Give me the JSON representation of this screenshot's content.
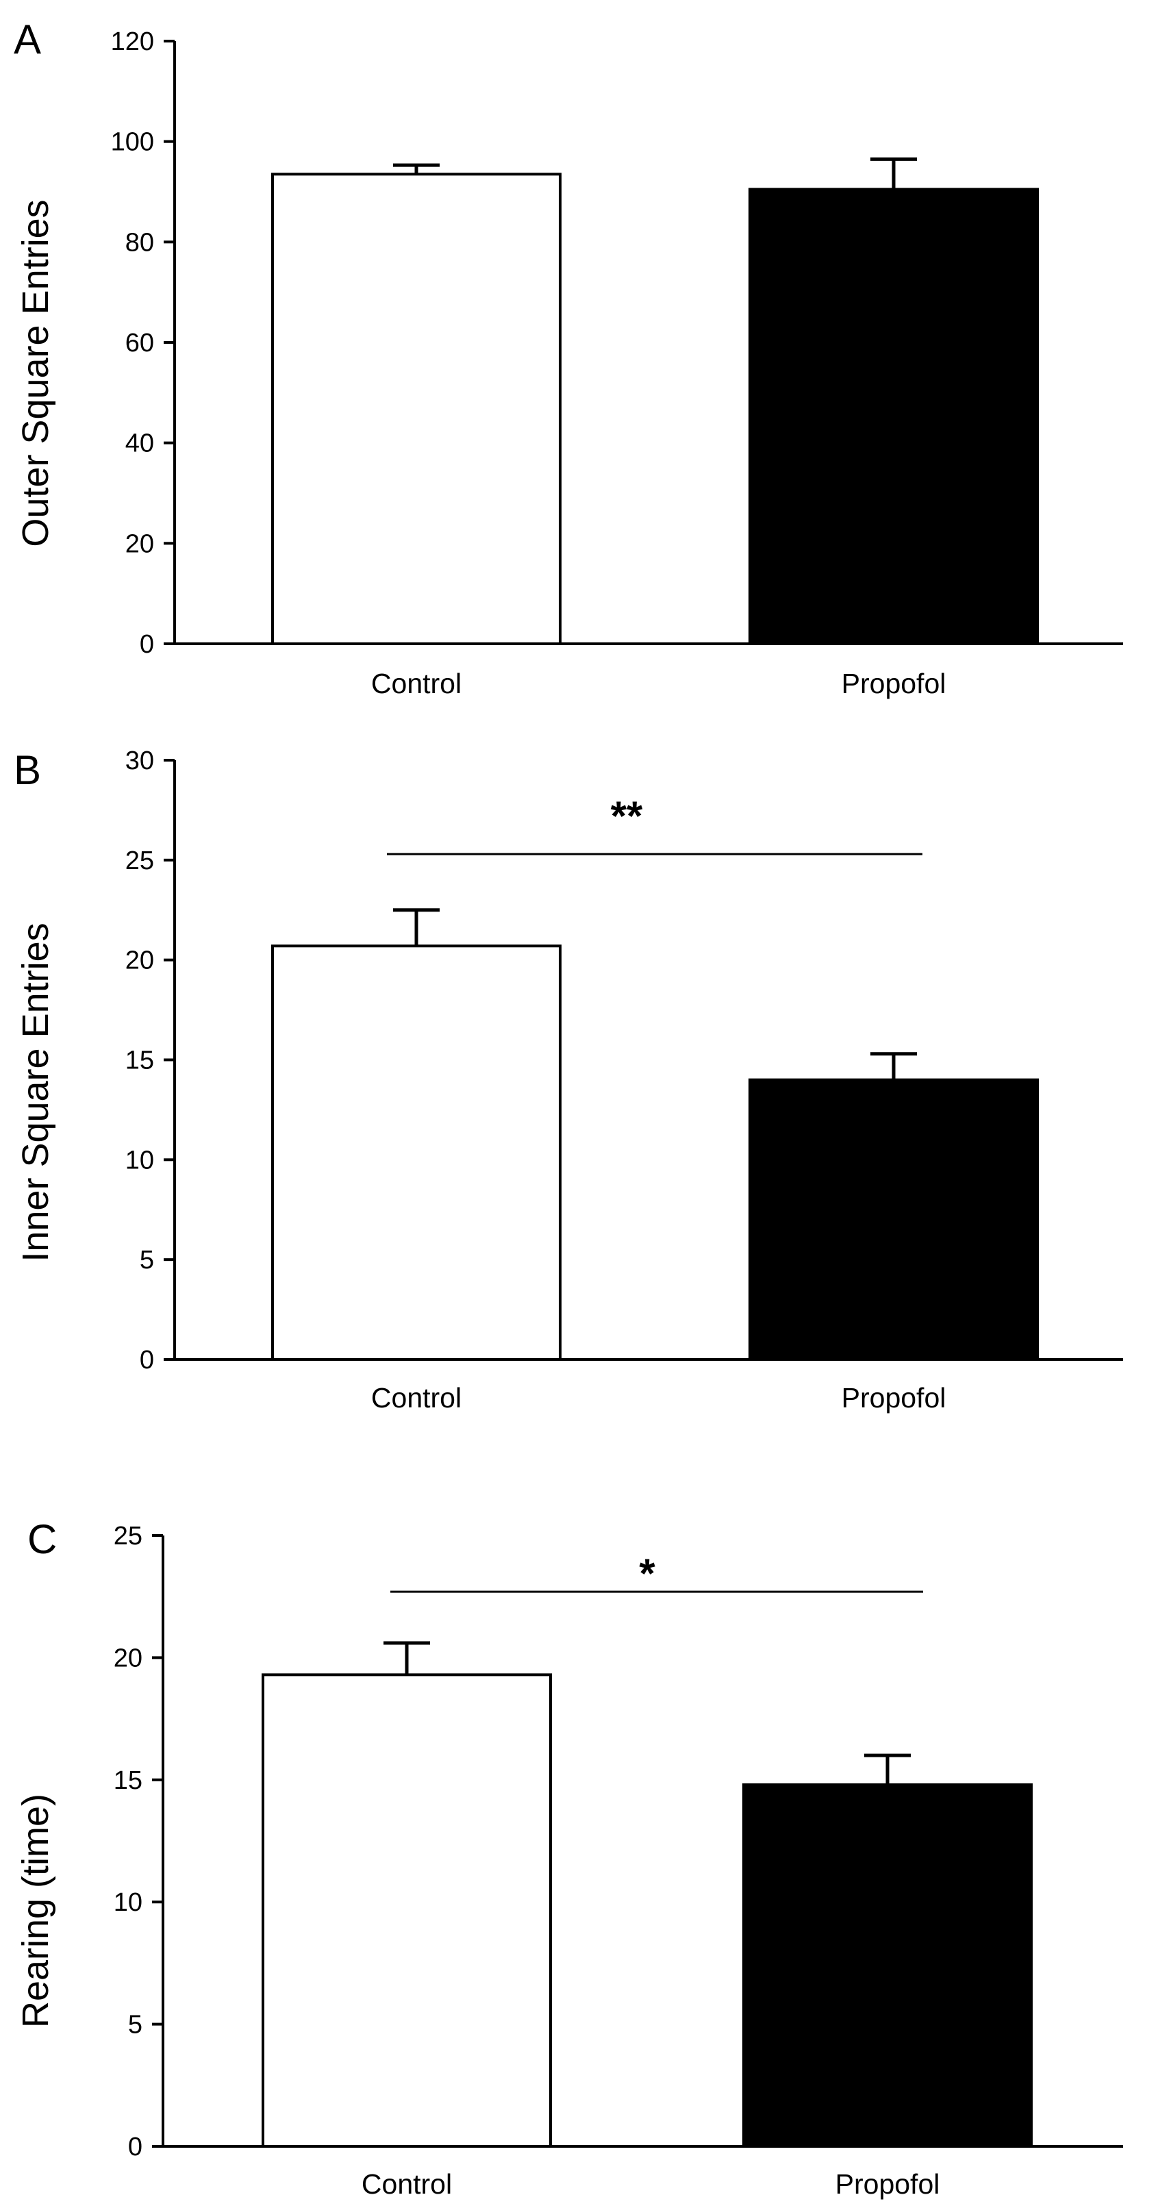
{
  "chart_data": [
    {
      "type": "bar",
      "panel_label": "A",
      "ylabel": "Outer Square Entries",
      "xlabel": "",
      "categories": [
        "Control",
        "Propofol"
      ],
      "values": [
        93.5,
        90.5
      ],
      "errors": [
        1.8,
        6.0
      ],
      "bar_colors": [
        "#ffffff",
        "#000000"
      ],
      "ylim": [
        0,
        120
      ],
      "yticks": [
        0,
        20,
        40,
        60,
        80,
        100,
        120
      ],
      "ytick_labels": [
        "0",
        "20",
        "40",
        "60",
        "80",
        "100",
        "120"
      ],
      "significance": null
    },
    {
      "type": "bar",
      "panel_label": "B",
      "ylabel": "Inner Square Entries",
      "xlabel": "",
      "categories": [
        "Control",
        "Propofol"
      ],
      "values": [
        20.7,
        14.0
      ],
      "errors": [
        1.8,
        1.3
      ],
      "bar_colors": [
        "#ffffff",
        "#000000"
      ],
      "ylim": [
        0,
        30
      ],
      "yticks": [
        0,
        5,
        10,
        15,
        20,
        25,
        30
      ],
      "ytick_labels": [
        "0",
        "5",
        "10",
        "15",
        "20",
        "25",
        "30"
      ],
      "significance": {
        "label": "**",
        "value": 25.3
      }
    },
    {
      "type": "bar",
      "panel_label": "C",
      "ylabel": "Rearing (time)",
      "xlabel": "",
      "categories": [
        "Control",
        "Propofol"
      ],
      "values": [
        19.3,
        14.8
      ],
      "errors": [
        1.3,
        1.2
      ],
      "bar_colors": [
        "#ffffff",
        "#000000"
      ],
      "ylim": [
        0,
        25
      ],
      "yticks": [
        0,
        5,
        10,
        15,
        20,
        25
      ],
      "ytick_labels": [
        "0",
        "5",
        "10",
        "15",
        "20",
        "25"
      ],
      "significance": {
        "label": "*",
        "value": 22.7
      }
    }
  ]
}
